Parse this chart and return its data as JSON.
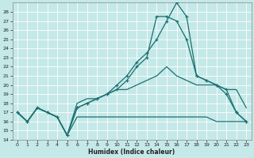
{
  "xlabel": "Humidex (Indice chaleur)",
  "bg_color": "#c5e8e8",
  "line_color": "#1a7070",
  "grid_color": "#b0d8d8",
  "xlim": [
    -0.5,
    23.5
  ],
  "ylim": [
    14,
    29
  ],
  "yticks": [
    14,
    15,
    16,
    17,
    18,
    19,
    20,
    21,
    22,
    23,
    24,
    25,
    26,
    27,
    28
  ],
  "xticks": [
    0,
    1,
    2,
    3,
    4,
    5,
    6,
    7,
    8,
    9,
    10,
    11,
    12,
    13,
    14,
    15,
    16,
    17,
    18,
    19,
    20,
    21,
    22,
    23
  ],
  "line_peak16_x": [
    0,
    1,
    2,
    3,
    4,
    5,
    6,
    7,
    8,
    9,
    10,
    11,
    12,
    13,
    14,
    15,
    16,
    17,
    18,
    19,
    20,
    21,
    22,
    23
  ],
  "line_peak16_y": [
    17,
    16,
    17.5,
    17,
    16.5,
    14.5,
    17.5,
    18,
    18.5,
    19,
    20,
    21,
    22.5,
    23.5,
    25,
    27,
    29,
    27.5,
    21,
    20.5,
    20,
    19.5,
    17,
    16
  ],
  "line_peak14_x": [
    0,
    1,
    2,
    3,
    4,
    5,
    6,
    7,
    8,
    9,
    10,
    11,
    12,
    13,
    14,
    15,
    16,
    17,
    18,
    19,
    20,
    21,
    22,
    23
  ],
  "line_peak14_y": [
    17,
    16,
    17.5,
    17,
    16.5,
    14.5,
    17.5,
    18,
    18.5,
    19,
    19.5,
    20.5,
    22,
    23,
    27.5,
    27.5,
    27,
    25,
    21,
    20.5,
    20,
    19,
    17,
    16
  ],
  "line_mid_x": [
    0,
    1,
    2,
    3,
    4,
    5,
    6,
    7,
    8,
    9,
    10,
    11,
    12,
    13,
    14,
    15,
    16,
    17,
    18,
    19,
    20,
    21,
    22,
    23
  ],
  "line_mid_y": [
    17,
    16,
    17.5,
    17,
    16.5,
    14.5,
    18,
    18.5,
    18.5,
    19,
    19.5,
    19.5,
    20,
    20.5,
    21,
    22,
    21,
    20.5,
    20,
    20,
    20,
    19.5,
    19.5,
    17.5
  ],
  "line_flat_x": [
    0,
    1,
    2,
    3,
    4,
    5,
    6,
    7,
    8,
    9,
    10,
    11,
    12,
    13,
    14,
    15,
    16,
    17,
    18,
    19,
    20,
    21,
    22,
    23
  ],
  "line_flat_y": [
    17,
    16,
    17.5,
    17,
    16.5,
    14.5,
    16.5,
    16.5,
    16.5,
    16.5,
    16.5,
    16.5,
    16.5,
    16.5,
    16.5,
    16.5,
    16.5,
    16.5,
    16.5,
    16.5,
    16,
    16,
    16,
    16
  ]
}
